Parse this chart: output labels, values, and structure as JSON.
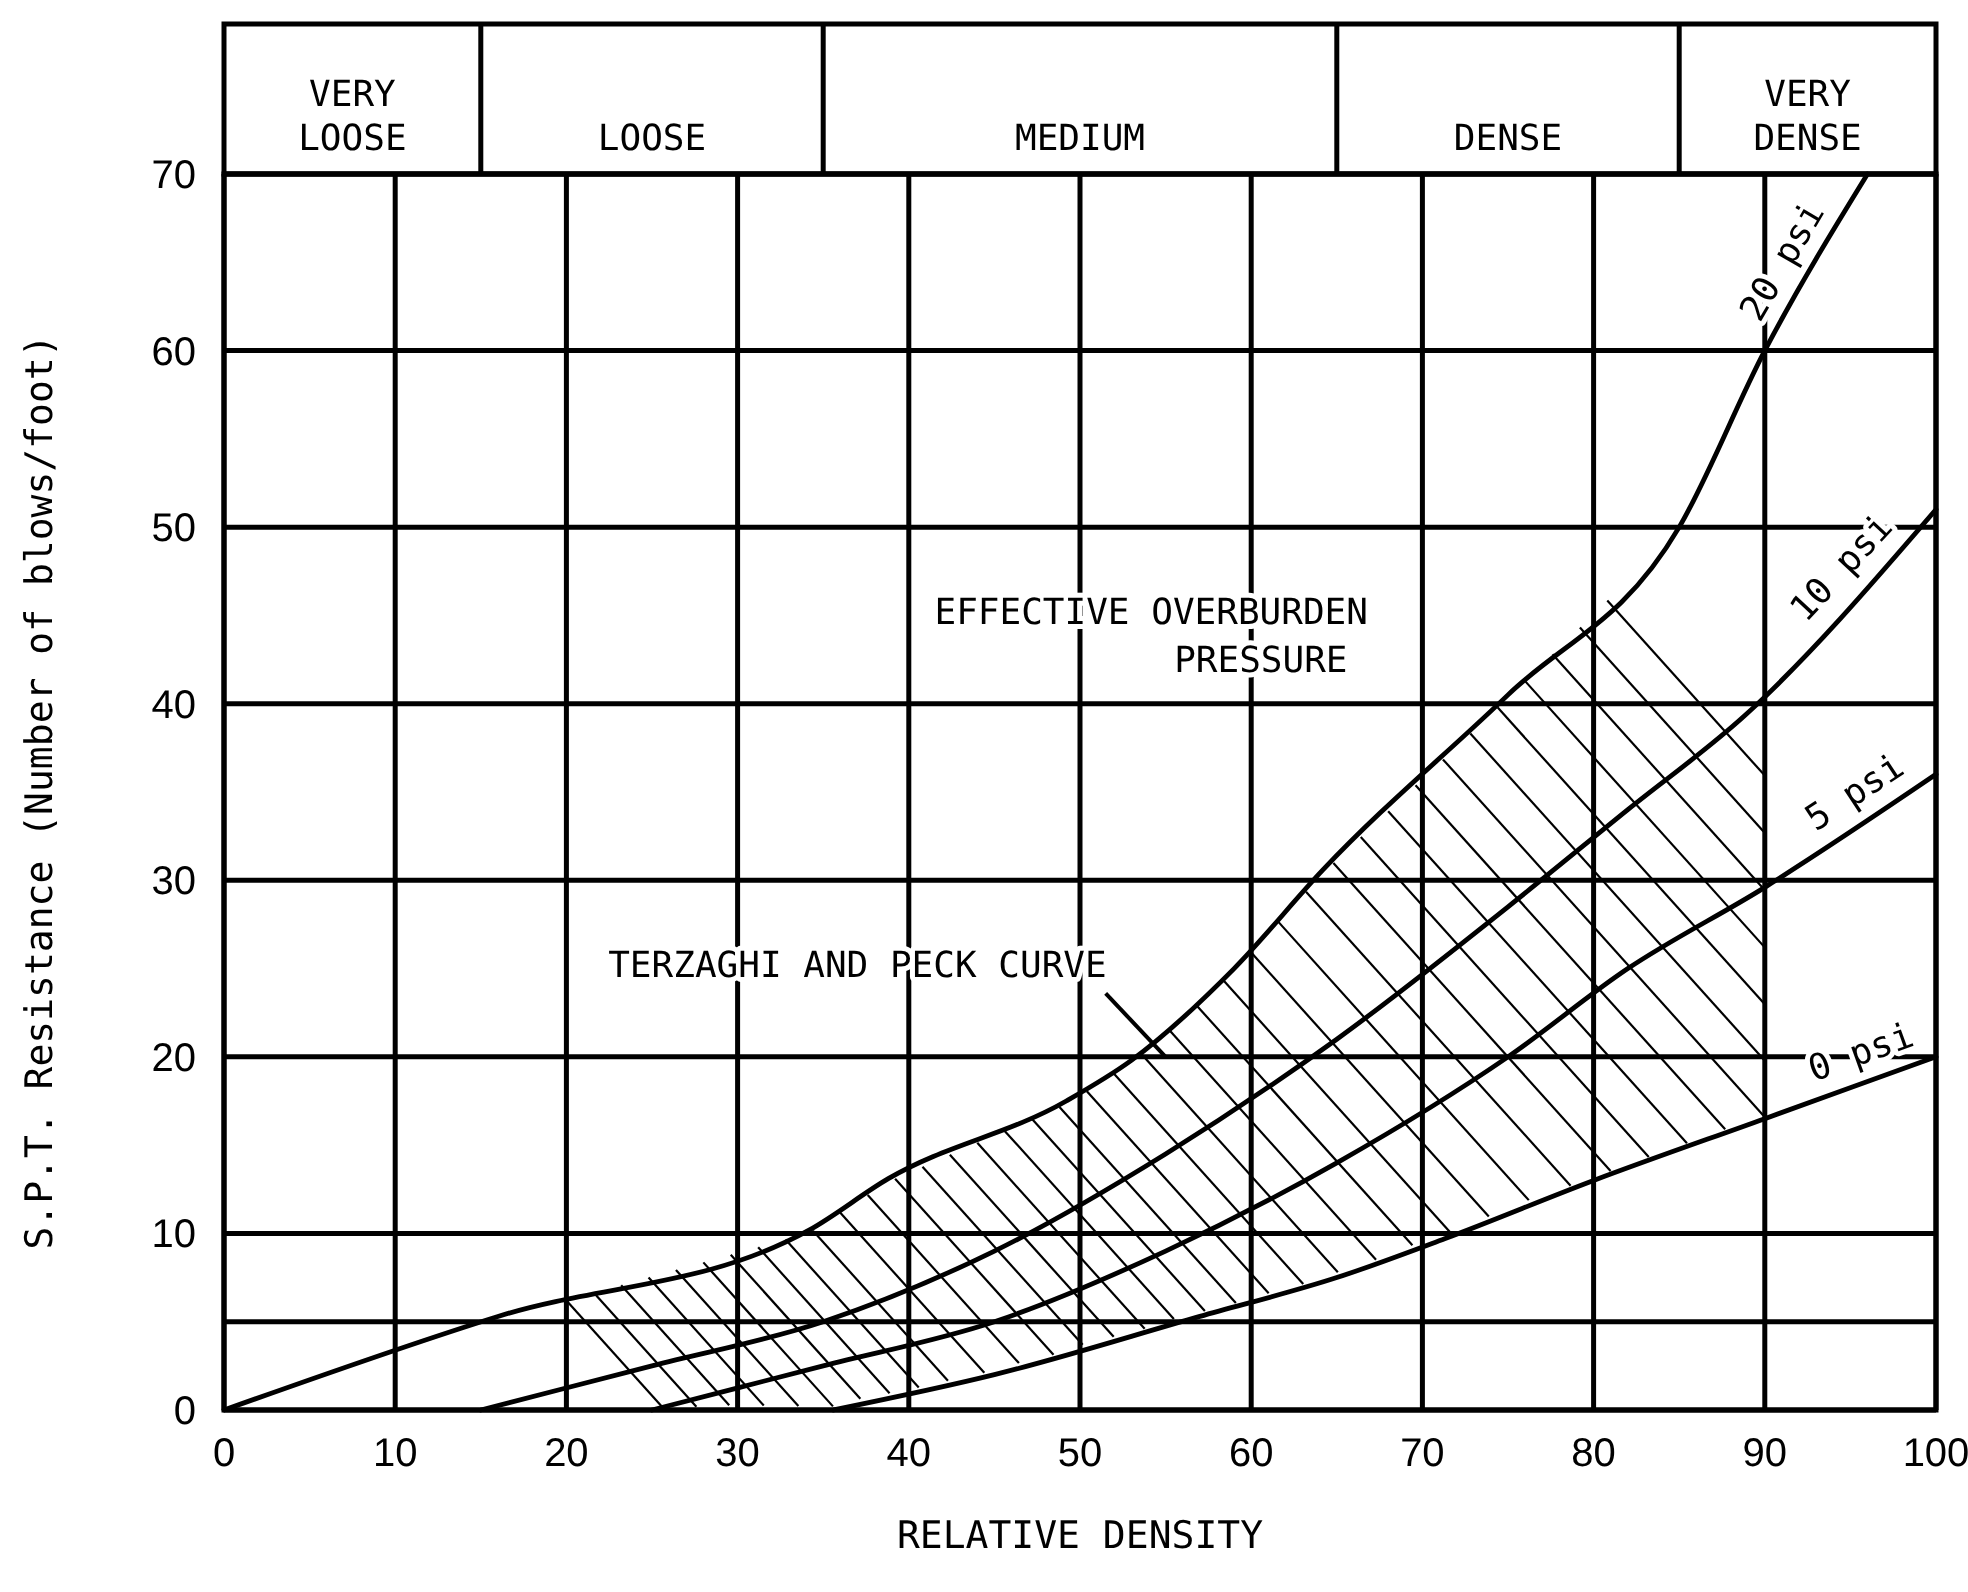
{
  "chart_data": {
    "type": "line",
    "xlabel": "RELATIVE DENSITY",
    "ylabel": "S.P.T. Resistance (Number of blows/foot)",
    "xlim": [
      0,
      100
    ],
    "ylim": [
      0,
      70
    ],
    "xticks": [
      0,
      10,
      20,
      30,
      40,
      50,
      60,
      70,
      80,
      90,
      100
    ],
    "yticks": [
      0,
      {
        "value": 5,
        "label": null
      },
      10,
      20,
      30,
      40,
      50,
      60,
      70
    ],
    "grid": true,
    "legend": false,
    "marker": "none",
    "line_style": "solid",
    "series": [
      {
        "name": "0 psi",
        "color": "#000000",
        "x": [
          35.6,
          45,
          57,
          65,
          71.3,
          80,
          90,
          100
        ],
        "values": [
          0,
          2,
          5.3,
          7.5,
          9.7,
          13,
          16.5,
          20
        ]
      },
      {
        "name": "5 psi",
        "color": "#000000",
        "x": [
          25,
          35,
          45,
          55,
          65,
          75,
          82,
          90,
          100
        ],
        "values": [
          0,
          2.5,
          5,
          9,
          14,
          20,
          25,
          29.6,
          36
        ]
      },
      {
        "name": "10 psi",
        "color": "#000000",
        "x": [
          15,
          25,
          35,
          45,
          55,
          65,
          75,
          82,
          88.8,
          100
        ],
        "values": [
          0,
          2.5,
          5,
          9,
          14.5,
          21,
          28.5,
          34,
          39.3,
          51
        ]
      },
      {
        "name": "20 psi",
        "color": "#000000",
        "x": [
          0,
          16,
          34.2,
          38.8,
          49.2,
          53,
          59,
          64.2,
          75,
          85,
          90,
          96
        ],
        "values": [
          0,
          5.3,
          10.2,
          13.1,
          17.5,
          19.8,
          25,
          30.6,
          40.5,
          50,
          60,
          70
        ]
      }
    ],
    "annotations": [
      "VERY LOOSE",
      "LOOSE",
      "MEDIUM",
      "DENSE",
      "VERY DENSE",
      "EFFECTIVE OVERBURDEN PRESSURE",
      "TERZAGHI AND PECK CURVE"
    ]
  }
}
